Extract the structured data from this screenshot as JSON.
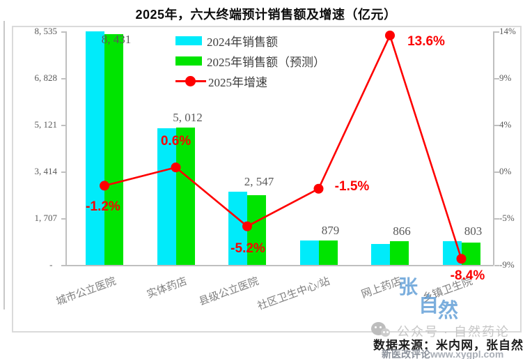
{
  "title": "2025年，六大终端预计销售额及增速（亿元）",
  "colors": {
    "bar_2024": "#00EBFA",
    "bar_2025": "#00E400",
    "growth_line": "#FE0000",
    "pct_label": "#FB0000",
    "value_label": "#595959",
    "axis": "#bfbfbf",
    "watermark_blue": "#5B9BD5"
  },
  "legend": [
    {
      "label": "2024年销售额",
      "marker": "bar-cyan"
    },
    {
      "label": "2025年销售额（预测）",
      "marker": "bar-green"
    },
    {
      "label": "2025年增速",
      "marker": "red-line-dot"
    }
  ],
  "left_axis": {
    "tick_labels": [
      "8, 535",
      "6, 828",
      "5, 121",
      "3, 414",
      "1, 707",
      "-  "
    ],
    "max": 8535,
    "min": 0
  },
  "right_axis": {
    "tick_labels": [
      "14%",
      "9%",
      "4%",
      "0%",
      "-5%",
      "-9%"
    ],
    "max": 14,
    "min": -9
  },
  "chart_data": {
    "type": "bar+line combo",
    "categories": [
      "城市公立医院",
      "实体药店",
      "县级公立医院",
      "社区卫生中心/站",
      "网上药店",
      "乡镇卫生院"
    ],
    "series": [
      {
        "name": "2024年销售额",
        "type": "bar",
        "axis": "left",
        "values": [
          8533,
          4982,
          2687,
          892,
          762,
          877
        ],
        "note": "values estimated from bar heights; no data labels shown in image"
      },
      {
        "name": "2025年销售额（预测）",
        "type": "bar",
        "axis": "left",
        "values": [
          8431,
          5012,
          2547,
          879,
          866,
          803
        ],
        "value_labels": [
          "8, 431",
          "5, 012",
          "2, 547",
          "879",
          "866",
          "803"
        ]
      },
      {
        "name": "2025年增速",
        "type": "line",
        "axis": "right",
        "values": [
          -1.2,
          0.6,
          -5.2,
          -1.5,
          13.6,
          -8.4
        ],
        "value_labels": [
          "-1.2%",
          "0.6%",
          "-5.2%",
          "-1.5%",
          "13.6%",
          "-8.4%"
        ]
      }
    ],
    "title": "2025年，六大终端预计销售额及增速（亿元）",
    "left_axis_range": [
      0,
      8535
    ],
    "right_axis_range": [
      -9,
      14
    ],
    "grid": false,
    "legend_position": "top-center-inside"
  },
  "watermarks": {
    "blue_name": [
      "张",
      "自",
      "然"
    ],
    "wechat_line": "公众号 · 自然药论",
    "site_left": "新医改评论",
    "site_right": "www.xygpl.com"
  },
  "source_note": "数据来源：米内网，张自然"
}
